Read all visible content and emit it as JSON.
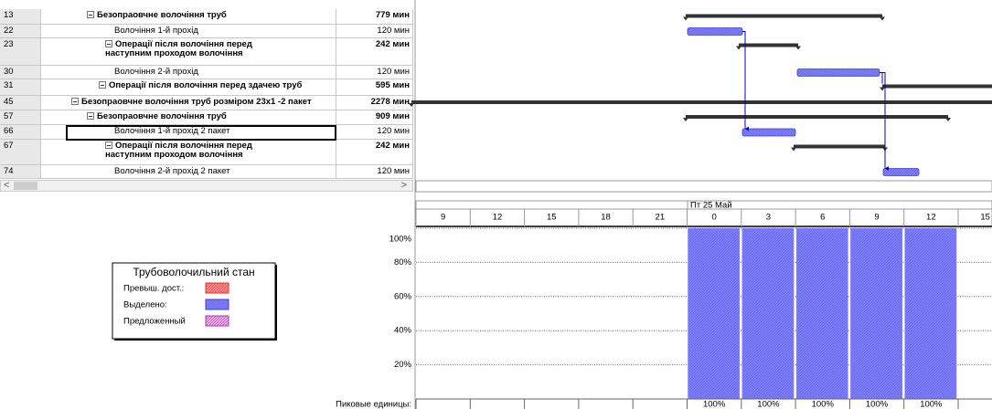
{
  "table": {
    "rows": [
      [
        "13",
        "Безопраовчне волочіння труб",
        "779 мин"
      ],
      [
        "22",
        "Волочіння 1-й прохід",
        "120 мин"
      ],
      [
        "23",
        "Операції після волочіння перед наступним проходом волочіння",
        "242 мин"
      ],
      [
        "30",
        "Волочіння 2-й прохід",
        "120 мин"
      ],
      [
        "31",
        "Операції після волочіння перед здачею труб",
        "595 мин"
      ],
      [
        "45",
        "Безопраовчне волочіння труб розміром 23х1 -2 пакет",
        "2278 мин"
      ],
      [
        "57",
        "Безопраовчне волочіння труб",
        "909 мин"
      ],
      [
        "66",
        "Волочіння 1-й прохід 2 пакет",
        "120 мин"
      ],
      [
        "67",
        "Операції після волочіння перед наступним проходом волочіння",
        "242 мин"
      ],
      [
        "74",
        "Волочіння 2-й прохід 2 пакет",
        "120 мин"
      ]
    ]
  },
  "legend": {
    "title": "Трубоволочильний стан",
    "items": [
      "Превыш. дост.:",
      "Выделено:",
      "Предложенный"
    ]
  },
  "timescale": {
    "date_label": "Пт 25 Май",
    "hours": [
      "9",
      "12",
      "15",
      "18",
      "21",
      "0",
      "3",
      "6",
      "9",
      "12",
      "15"
    ]
  },
  "chart_data": {
    "type": "bar",
    "ylim": [
      0,
      100
    ],
    "yticks": [
      {
        "value": 20,
        "label": "20%"
      },
      {
        "value": 40,
        "label": "40%"
      },
      {
        "value": 60,
        "label": "60%"
      },
      {
        "value": 80,
        "label": "80%"
      },
      {
        "value": 100,
        "label": "100%"
      }
    ],
    "values": [
      null,
      null,
      null,
      null,
      null,
      100,
      100,
      100,
      100,
      100,
      null
    ],
    "value_labels": [
      null,
      null,
      null,
      null,
      null,
      "100%",
      "100%",
      "100%",
      "100%",
      "100%",
      null
    ],
    "color": "#8080ff",
    "peak_label": "Пиковые единицы:"
  }
}
